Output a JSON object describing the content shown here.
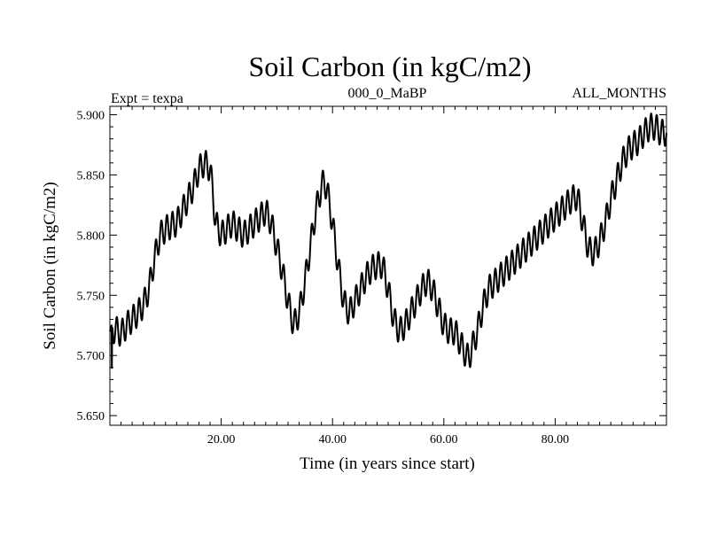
{
  "chart_data": {
    "type": "line",
    "title": "Soil Carbon (in kgC/m2)",
    "subtitle_left": "Expt = texpa",
    "subtitle_center": "000_0_MaBP",
    "subtitle_right": "ALL_MONTHS",
    "xlabel": "Time (in years since start)",
    "ylabel": "Soil Carbon (in kgC/m2)",
    "xlim": [
      0,
      100
    ],
    "ylim": [
      5.642,
      5.907
    ],
    "x_ticks": [
      20,
      40,
      60,
      80
    ],
    "x_tick_labels": [
      "20.00",
      "40.00",
      "60.00",
      "80.00"
    ],
    "y_ticks": [
      5.65,
      5.7,
      5.75,
      5.8,
      5.85,
      5.9
    ],
    "y_tick_labels": [
      "5.650",
      "5.700",
      "5.750",
      "5.800",
      "5.850",
      "5.900"
    ],
    "grid": false,
    "line_color": "#000000",
    "seasonal_cycle": {
      "period_years": 1,
      "amplitude": 0.011
    },
    "series": [
      {
        "name": "Soil Carbon",
        "x": [
          0,
          0.3,
          0.35,
          0.4,
          1,
          2,
          3,
          4,
          5,
          6,
          7,
          8,
          9,
          10,
          11,
          12,
          13,
          14,
          15,
          16,
          17,
          17.5,
          18,
          18.5,
          19,
          20,
          21,
          22,
          23,
          24,
          25,
          26,
          27,
          28,
          29,
          30,
          31,
          32,
          33,
          34,
          35,
          36,
          37,
          38,
          38.5,
          39,
          40,
          41,
          42,
          43,
          44,
          45,
          46,
          47,
          48,
          49,
          50,
          51,
          52,
          53,
          54,
          55,
          56,
          57,
          58,
          59,
          60,
          61,
          62,
          63,
          64,
          64.5,
          65,
          66,
          67,
          68,
          69,
          70,
          71,
          72,
          73,
          74,
          75,
          76,
          77,
          78,
          79,
          80,
          81,
          82,
          83,
          84,
          85,
          86,
          87,
          88,
          89,
          90,
          91,
          92,
          93,
          94,
          95,
          96,
          97,
          98,
          99,
          100
        ],
        "values": [
          5.72,
          5.725,
          5.682,
          5.72,
          5.722,
          5.718,
          5.725,
          5.73,
          5.735,
          5.742,
          5.755,
          5.78,
          5.8,
          5.805,
          5.808,
          5.81,
          5.82,
          5.83,
          5.84,
          5.855,
          5.86,
          5.858,
          5.855,
          5.835,
          5.81,
          5.8,
          5.805,
          5.81,
          5.805,
          5.8,
          5.805,
          5.81,
          5.815,
          5.82,
          5.81,
          5.79,
          5.77,
          5.745,
          5.725,
          5.735,
          5.76,
          5.79,
          5.82,
          5.84,
          5.845,
          5.838,
          5.81,
          5.775,
          5.745,
          5.735,
          5.745,
          5.755,
          5.765,
          5.772,
          5.775,
          5.775,
          5.755,
          5.73,
          5.72,
          5.725,
          5.735,
          5.745,
          5.755,
          5.762,
          5.755,
          5.74,
          5.725,
          5.72,
          5.72,
          5.71,
          5.7,
          5.698,
          5.705,
          5.72,
          5.74,
          5.755,
          5.76,
          5.765,
          5.77,
          5.775,
          5.78,
          5.785,
          5.79,
          5.795,
          5.8,
          5.805,
          5.81,
          5.815,
          5.82,
          5.825,
          5.83,
          5.832,
          5.81,
          5.788,
          5.785,
          5.795,
          5.81,
          5.83,
          5.845,
          5.86,
          5.87,
          5.875,
          5.878,
          5.885,
          5.89,
          5.89,
          5.885,
          5.885
        ]
      }
    ]
  }
}
